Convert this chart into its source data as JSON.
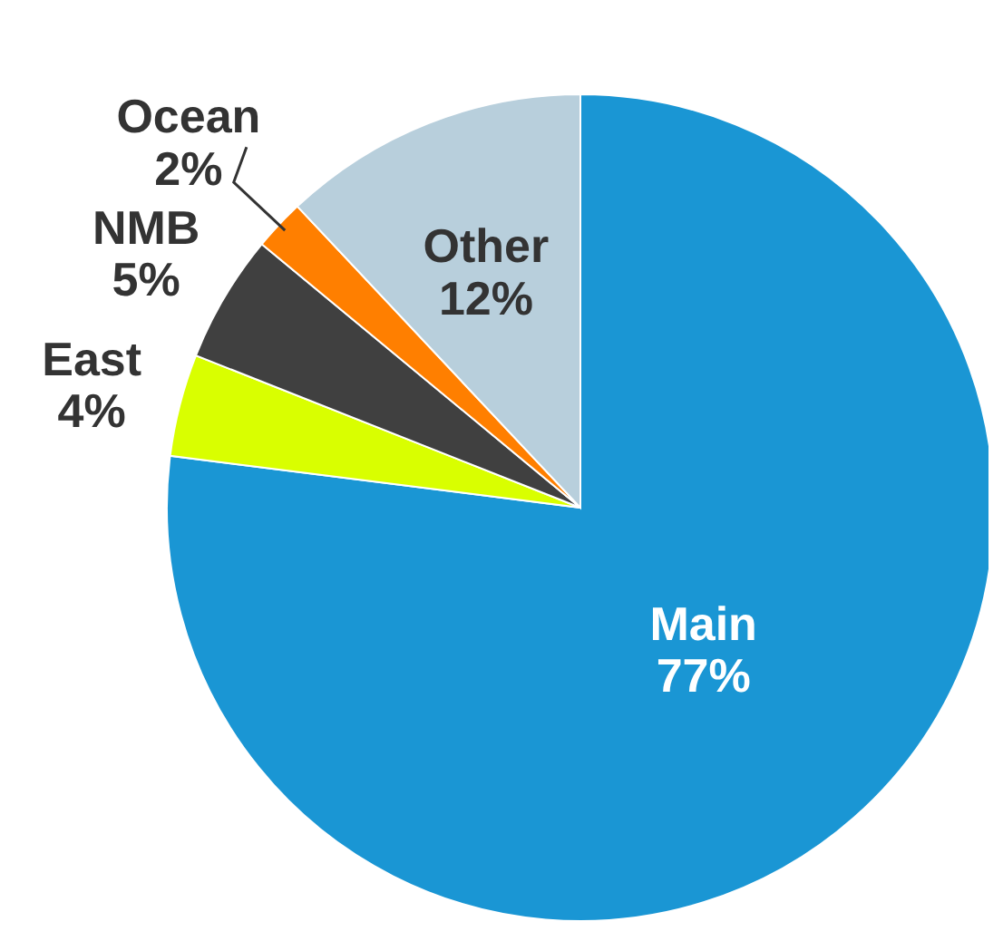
{
  "chart_data": {
    "type": "pie",
    "categories": [
      "Main",
      "East",
      "NMB",
      "Ocean",
      "Other"
    ],
    "values": [
      77,
      4,
      5,
      2,
      12
    ],
    "colors": [
      "#1a96d4",
      "#d9ff00",
      "#404040",
      "#ff7f00",
      "#b8cfdc"
    ],
    "value_labels": [
      "77%",
      "4%",
      "5%",
      "2%",
      "12%"
    ]
  }
}
